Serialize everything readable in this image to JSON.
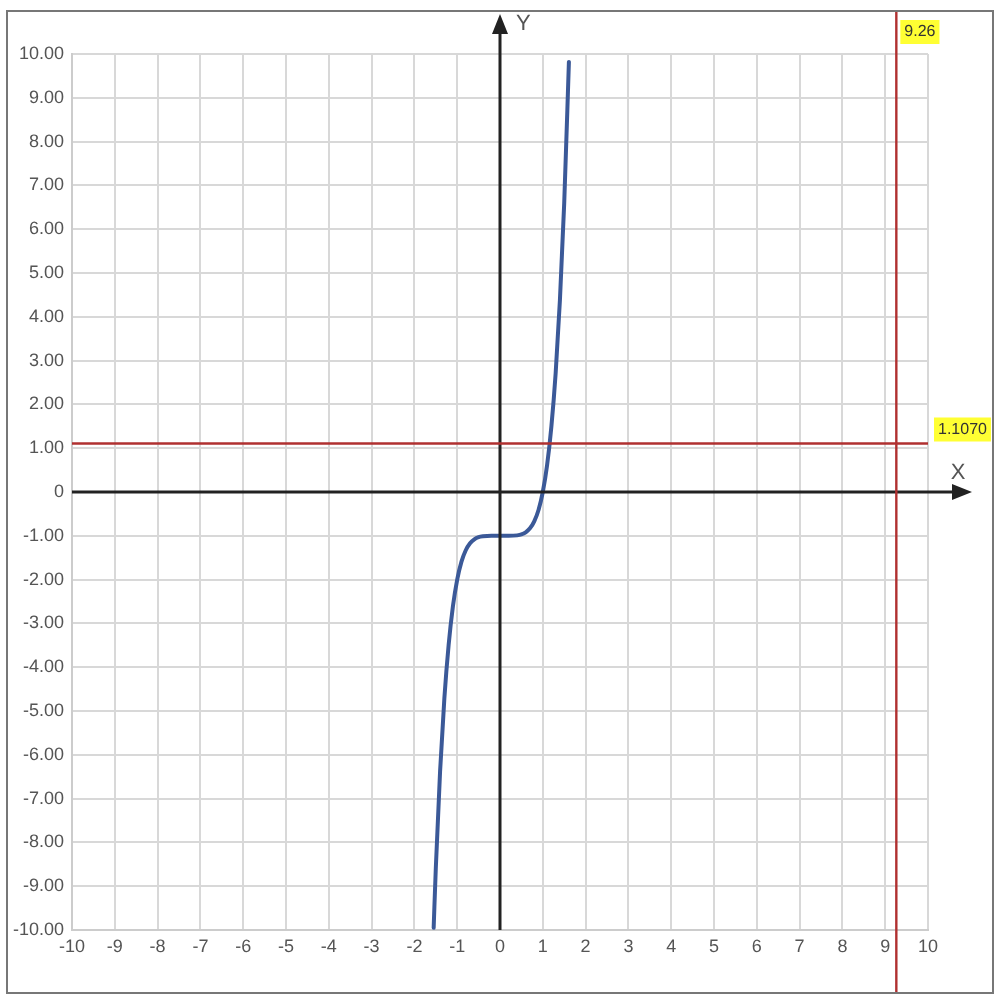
{
  "chart_data": {
    "type": "line",
    "xlabel": "X",
    "ylabel": "Y",
    "x": [
      -1.55,
      -1.5,
      -1.4,
      -1.3,
      -1.2,
      -1.1,
      -1,
      -0.9,
      -0.8,
      -0.7,
      -0.6,
      -0.5,
      -0.4,
      -0.2,
      0,
      0.2,
      0.4,
      0.5,
      0.6,
      0.7,
      0.8,
      0.9,
      1,
      1.1,
      1.2,
      1.3,
      1.4,
      1.5,
      1.61
    ],
    "series": [
      {
        "color": "#3b5998",
        "values": [
          -9.95,
          -8.59,
          -6.38,
          -4.71,
          -3.49,
          -2.61,
          -2,
          -1.59,
          -1.33,
          -1.17,
          -1.08,
          -1.03,
          -1.01,
          -1,
          -1,
          -1,
          -0.99,
          -0.97,
          -0.92,
          -0.83,
          -0.67,
          -0.41,
          0,
          0.61,
          1.49,
          2.71,
          4.38,
          6.59,
          9.82
        ]
      }
    ],
    "xlim": [
      -10,
      10
    ],
    "xticks": [
      -10,
      -9,
      -8,
      -7,
      -6,
      -5,
      -4,
      -3,
      -2,
      -1,
      0,
      1,
      2,
      3,
      4,
      5,
      6,
      7,
      8,
      9,
      10
    ],
    "ylim": [
      -10,
      10
    ],
    "yticks": [
      {
        "value": -10,
        "label": "-10.00"
      },
      {
        "value": -9,
        "label": "-9.00"
      },
      {
        "value": -8,
        "label": "-8.00"
      },
      {
        "value": -7,
        "label": "-7.00"
      },
      {
        "value": -6,
        "label": "-6.00"
      },
      {
        "value": -5,
        "label": "-5.00"
      },
      {
        "value": -4,
        "label": "-4.00"
      },
      {
        "value": -3,
        "label": "-3.00"
      },
      {
        "value": -2,
        "label": "-2.00"
      },
      {
        "value": -1,
        "label": "-1.00"
      },
      0,
      {
        "value": 1,
        "label": "1.00"
      },
      {
        "value": 2,
        "label": "2.00"
      },
      {
        "value": 3,
        "label": "3.00"
      },
      {
        "value": 4,
        "label": "4.00"
      },
      {
        "value": 5,
        "label": "5.00"
      },
      {
        "value": 6,
        "label": "6.00"
      },
      {
        "value": 7,
        "label": "7.00"
      },
      {
        "value": 8,
        "label": "8.00"
      },
      {
        "value": 9,
        "label": "9.00"
      },
      {
        "value": 10,
        "label": "10.00"
      }
    ],
    "ref_lines": [
      {
        "axis": "x",
        "value": 9.26,
        "label": "9.26",
        "color": "#b03030"
      },
      {
        "axis": "y",
        "value": 1.107,
        "label": "1.1070",
        "color": "#b03030"
      }
    ],
    "grid": true,
    "legend": false,
    "marker": "none",
    "line_style": "solid"
  }
}
